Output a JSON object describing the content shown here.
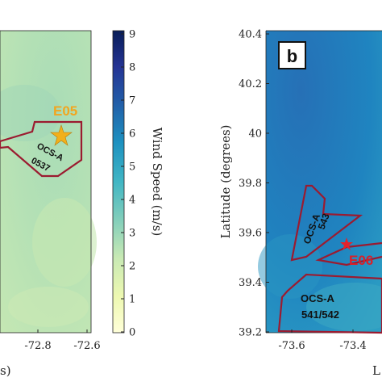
{
  "panel_a": {
    "site_label": "E05",
    "lease_name": "OCS-A",
    "lease_number": "0537",
    "x_ticks": [
      "-72.8",
      "-72.6"
    ],
    "x_label_partial": "s)",
    "colors": {
      "site_label": "#f2a51f",
      "star": "#f2b01a",
      "lease_outline": "#9b1b30"
    }
  },
  "colorbar": {
    "label": "Wind Speed (m/s)",
    "ticks": [
      "9",
      "8",
      "7",
      "6",
      "5",
      "4",
      "3",
      "2",
      "1",
      "0"
    ],
    "range": [
      0,
      9
    ],
    "colormap": [
      "#ffffd9",
      "#edf8b1",
      "#c7e9b4",
      "#7fcdbb",
      "#41b6c4",
      "#1d91c0",
      "#225ea8",
      "#253494",
      "#081d58"
    ]
  },
  "panel_b": {
    "badge": "b",
    "y_label": "Latitude (degrees)",
    "y_ticks": [
      "40.4",
      "40.2",
      "40",
      "39.8",
      "39.6",
      "39.4",
      "39.2"
    ],
    "x_ticks": [
      "-73.6",
      "-73.4"
    ],
    "x_label_partial": "L",
    "site_label": "E06",
    "leases": [
      {
        "name": "OCS-A",
        "number": "543"
      },
      {
        "name": "OCS-A",
        "number": "541/542"
      }
    ],
    "colors": {
      "site_label": "#d8202a",
      "star": "#e4222c",
      "lease_outline": "#9b1b30"
    }
  }
}
